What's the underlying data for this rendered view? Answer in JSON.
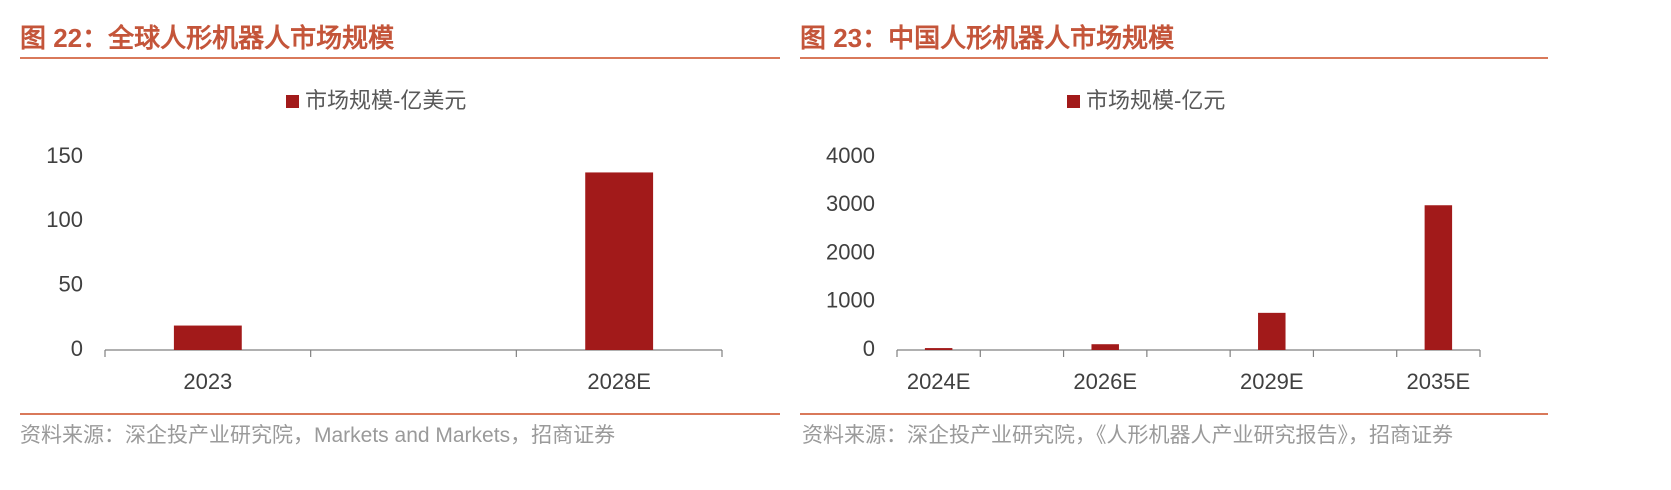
{
  "chart_data": [
    {
      "type": "bar",
      "title": "图 22：全球人形机器人市场规模",
      "categories": [
        "2023",
        null,
        "2028E"
      ],
      "series": [
        {
          "name": "市场规模-亿美元",
          "color": "#a21a1a",
          "values": [
            19,
            null,
            138
          ]
        }
      ],
      "ylim": [
        0,
        150
      ],
      "yticks": [
        0,
        50,
        100,
        150
      ],
      "grid": false,
      "source": "资料来源：深企投产业研究院，Markets and Markets，招商证券"
    },
    {
      "type": "bar",
      "title": "图 23：中国人形机器人市场规模",
      "categories": [
        "2024E",
        null,
        "2026E",
        null,
        "2029E",
        null,
        "2035E"
      ],
      "series": [
        {
          "name": "市场规模-亿元",
          "color": "#a21a1a",
          "values": [
            40,
            null,
            120,
            null,
            770,
            null,
            3000
          ]
        }
      ],
      "ylim": [
        0,
        4000
      ],
      "yticks": [
        0,
        1000,
        2000,
        3000,
        4000
      ],
      "grid": false,
      "source": "资料来源：深企投产业研究院，《人形机器人产业研究报告》，招商证券"
    }
  ]
}
